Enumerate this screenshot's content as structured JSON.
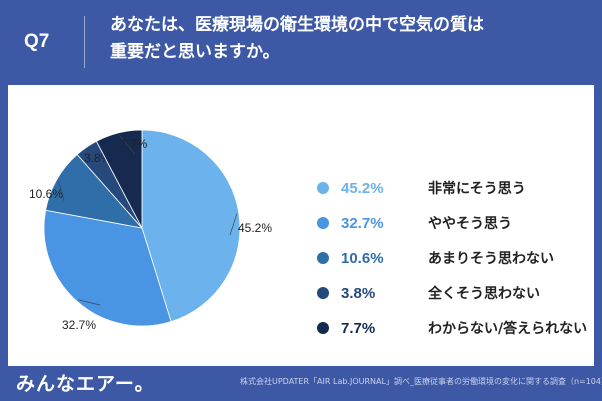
{
  "question": {
    "number": "Q7",
    "text_line1": "あなたは、医療現場の衛生環境の中で空気の質は",
    "text_line2": "重要だと思いますか。"
  },
  "chart_data": {
    "type": "pie",
    "title": "",
    "categories": [
      "非常にそう思う",
      "ややそう思う",
      "あまりそう思わない",
      "全くそう思わない",
      "わからない/答えられない"
    ],
    "values": [
      45.2,
      32.7,
      10.6,
      3.8,
      7.7
    ],
    "value_labels": [
      "45.2%",
      "32.7%",
      "10.6%",
      "3.8%",
      "7.7%"
    ],
    "colors": [
      "#6cb2ec",
      "#4a94e4",
      "#2f6ea9",
      "#24497a",
      "#162a50"
    ],
    "legend_placement": "right"
  },
  "footer": {
    "logo": "みんなエアー。",
    "credit": "株式会社UPDATER「AIR Lab.JOURNAL」調べ_医療従事者の労働環境の変化に関する調査（n=104）"
  }
}
